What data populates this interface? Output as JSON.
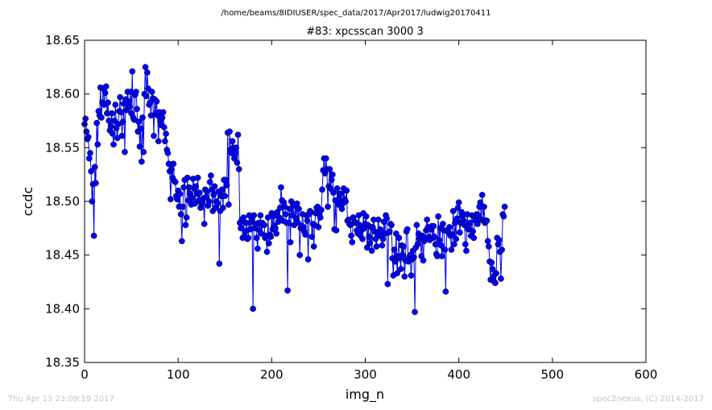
{
  "chart_data": {
    "type": "line",
    "suptitle": "/home/beams/8IDIUSER/spec_data/2017/Apr2017/ludwig20170411",
    "title": "#83: xpcsscan 3000 3",
    "xlabel": "img_n",
    "ylabel": "ccdc",
    "xlim": [
      0,
      600
    ],
    "ylim": [
      18.35,
      18.65
    ],
    "xticks": [
      "0",
      "100",
      "200",
      "300",
      "400",
      "500",
      "600"
    ],
    "yticks": [
      "18.35",
      "18.40",
      "18.45",
      "18.50",
      "18.55",
      "18.60",
      "18.65"
    ],
    "grid": false,
    "marker": "circle",
    "line_color": "#0000ff",
    "marker_color": "#0000ff",
    "series": [
      {
        "x_start": 0,
        "x_step": 1,
        "values": [
          18.572,
          18.577,
          18.565,
          18.558,
          18.56,
          18.54,
          18.545,
          18.528,
          18.5,
          18.516,
          18.468,
          18.532,
          18.517,
          18.573,
          18.553,
          18.584,
          18.58,
          18.606,
          18.578,
          18.592,
          18.605,
          18.59,
          18.601,
          18.607,
          18.582,
          18.592,
          18.575,
          18.566,
          18.57,
          18.582,
          18.563,
          18.553,
          18.575,
          18.59,
          18.568,
          18.559,
          18.572,
          18.584,
          18.597,
          18.583,
          18.561,
          18.574,
          18.591,
          18.546,
          18.595,
          18.585,
          18.602,
          18.593,
          18.588,
          18.602,
          18.582,
          18.621,
          18.578,
          18.576,
          18.599,
          18.602,
          18.586,
          18.565,
          18.574,
          18.551,
          18.568,
          18.537,
          18.578,
          18.546,
          18.6,
          18.625,
          18.598,
          18.62,
          18.605,
          18.59,
          18.592,
          18.58,
          18.602,
          18.596,
          18.561,
          18.595,
          18.582,
          18.593,
          18.58,
          18.556,
          18.583,
          18.575,
          18.571,
          18.578,
          18.583,
          18.569,
          18.556,
          18.563,
          18.548,
          18.545,
          18.535,
          18.528,
          18.502,
          18.53,
          18.522,
          18.535,
          18.519,
          18.518,
          18.505,
          18.502,
          18.51,
          18.495,
          18.507,
          18.488,
          18.463,
          18.495,
          18.513,
          18.52,
          18.478,
          18.485,
          18.522,
          18.501,
          18.513,
          18.507,
          18.497,
          18.503,
          18.521,
          18.512,
          18.498,
          18.514,
          18.507,
          18.522,
          18.501,
          18.508,
          18.494,
          18.498,
          18.499,
          18.503,
          18.479,
          18.511,
          18.504,
          18.509,
          18.496,
          18.5,
          18.518,
          18.524,
          18.511,
          18.491,
          18.506,
          18.514,
          18.494,
          18.5,
          18.498,
          18.509,
          18.442,
          18.491,
          18.505,
          18.511,
          18.494,
          18.52,
          18.505,
          18.52,
          18.515,
          18.564,
          18.497,
          18.565,
          18.548,
          18.545,
          18.556,
          18.55,
          18.54,
          18.545,
          18.55,
          18.536,
          18.562,
          18.53,
          18.48,
          18.475,
          18.483,
          18.466,
          18.485,
          18.467,
          18.472,
          18.48,
          18.465,
          18.466,
          18.487,
          18.474,
          18.481,
          18.483,
          18.4,
          18.487,
          18.475,
          18.479,
          18.466,
          18.456,
          18.48,
          18.473,
          18.487,
          18.47,
          18.48,
          18.478,
          18.478,
          18.466,
          18.468,
          18.453,
          18.485,
          18.461,
          18.469,
          18.467,
          18.489,
          18.474,
          18.486,
          18.477,
          18.475,
          18.47,
          18.49,
          18.481,
          18.485,
          18.494,
          18.513,
          18.501,
          18.482,
          18.499,
          18.495,
          18.488,
          18.48,
          18.417,
          18.48,
          18.493,
          18.462,
          18.5,
          18.487,
          18.497,
          18.478,
          18.496,
          18.484,
          18.498,
          18.48,
          18.493,
          18.45,
          18.475,
          18.477,
          18.488,
          18.476,
          18.472,
          18.469,
          18.487,
          18.482,
          18.446,
          18.488,
          18.491,
          18.49,
          18.467,
          18.479,
          18.458,
          18.478,
          18.489,
          18.494,
          18.495,
          18.476,
          18.488,
          18.485,
          18.492,
          18.511,
          18.529,
          18.54,
          18.526,
          18.54,
          18.53,
          18.495,
          18.514,
          18.53,
          18.512,
          18.52,
          18.525,
          18.508,
          18.474,
          18.501,
          18.473,
          18.512,
          18.497,
          18.502,
          18.507,
          18.507,
          18.493,
          18.498,
          18.512,
          18.502,
          18.5,
          18.51,
          18.482,
          18.483,
          18.479,
          18.478,
          18.468,
          18.462,
          18.485,
          18.48,
          18.481,
          18.48,
          18.473,
          18.47,
          18.487,
          18.478,
          18.468,
          18.473,
          18.465,
          18.489,
          18.475,
          18.479,
          18.486,
          18.457,
          18.478,
          18.467,
          18.461,
          18.476,
          18.454,
          18.476,
          18.483,
          18.472,
          18.465,
          18.458,
          18.47,
          18.483,
          18.468,
          18.474,
          18.472,
          18.459,
          18.465,
          18.481,
          18.47,
          18.487,
          18.484,
          18.423,
          18.471,
          18.472,
          18.479,
          18.478,
          18.447,
          18.431,
          18.455,
          18.444,
          18.47,
          18.433,
          18.449,
          18.466,
          18.447,
          18.437,
          18.459,
          18.45,
          18.458,
          18.43,
          18.445,
          18.472,
          18.474,
          18.444,
          18.448,
          18.45,
          18.431,
          18.446,
          18.454,
          18.448,
          18.397,
          18.457,
          18.478,
          18.46,
          18.47,
          18.465,
          18.465,
          18.449,
          18.468,
          18.445,
          18.463,
          18.466,
          18.473,
          18.483,
          18.476,
          18.467,
          18.464,
          18.474,
          18.477,
          18.466,
          18.477,
          18.467,
          18.46,
          18.451,
          18.449,
          18.486,
          18.464,
          18.475,
          18.459,
          18.449,
          18.479,
          18.473,
          18.455,
          18.416,
          18.473,
          18.473,
          18.471,
          18.476,
          18.468,
          18.455,
          18.469,
          18.491,
          18.46,
          18.48,
          18.465,
          18.484,
          18.494,
          18.499,
          18.471,
          18.48,
          18.49,
          18.486,
          18.482,
          18.478,
          18.46,
          18.454,
          18.488,
          18.474,
          18.474,
          18.48,
          18.468,
          18.487,
          18.472,
          18.466,
          18.486,
          18.482,
          18.488,
          18.479,
          18.487,
          18.495,
          18.499,
          18.483,
          18.506,
          18.482,
          18.495,
          18.48,
          18.482,
          18.482,
          18.463,
          18.458,
          18.444,
          18.427,
          18.443,
          18.437,
          18.43,
          18.425,
          18.424,
          18.433,
          18.466,
          18.46,
          18.464,
          18.453,
          18.428,
          18.455,
          18.488,
          18.486,
          18.495
        ]
      }
    ]
  },
  "footer": {
    "timestamp": "Thu Apr 13 23:09:19 2017",
    "credit": "spec2nexus, (C) 2014-2017"
  }
}
